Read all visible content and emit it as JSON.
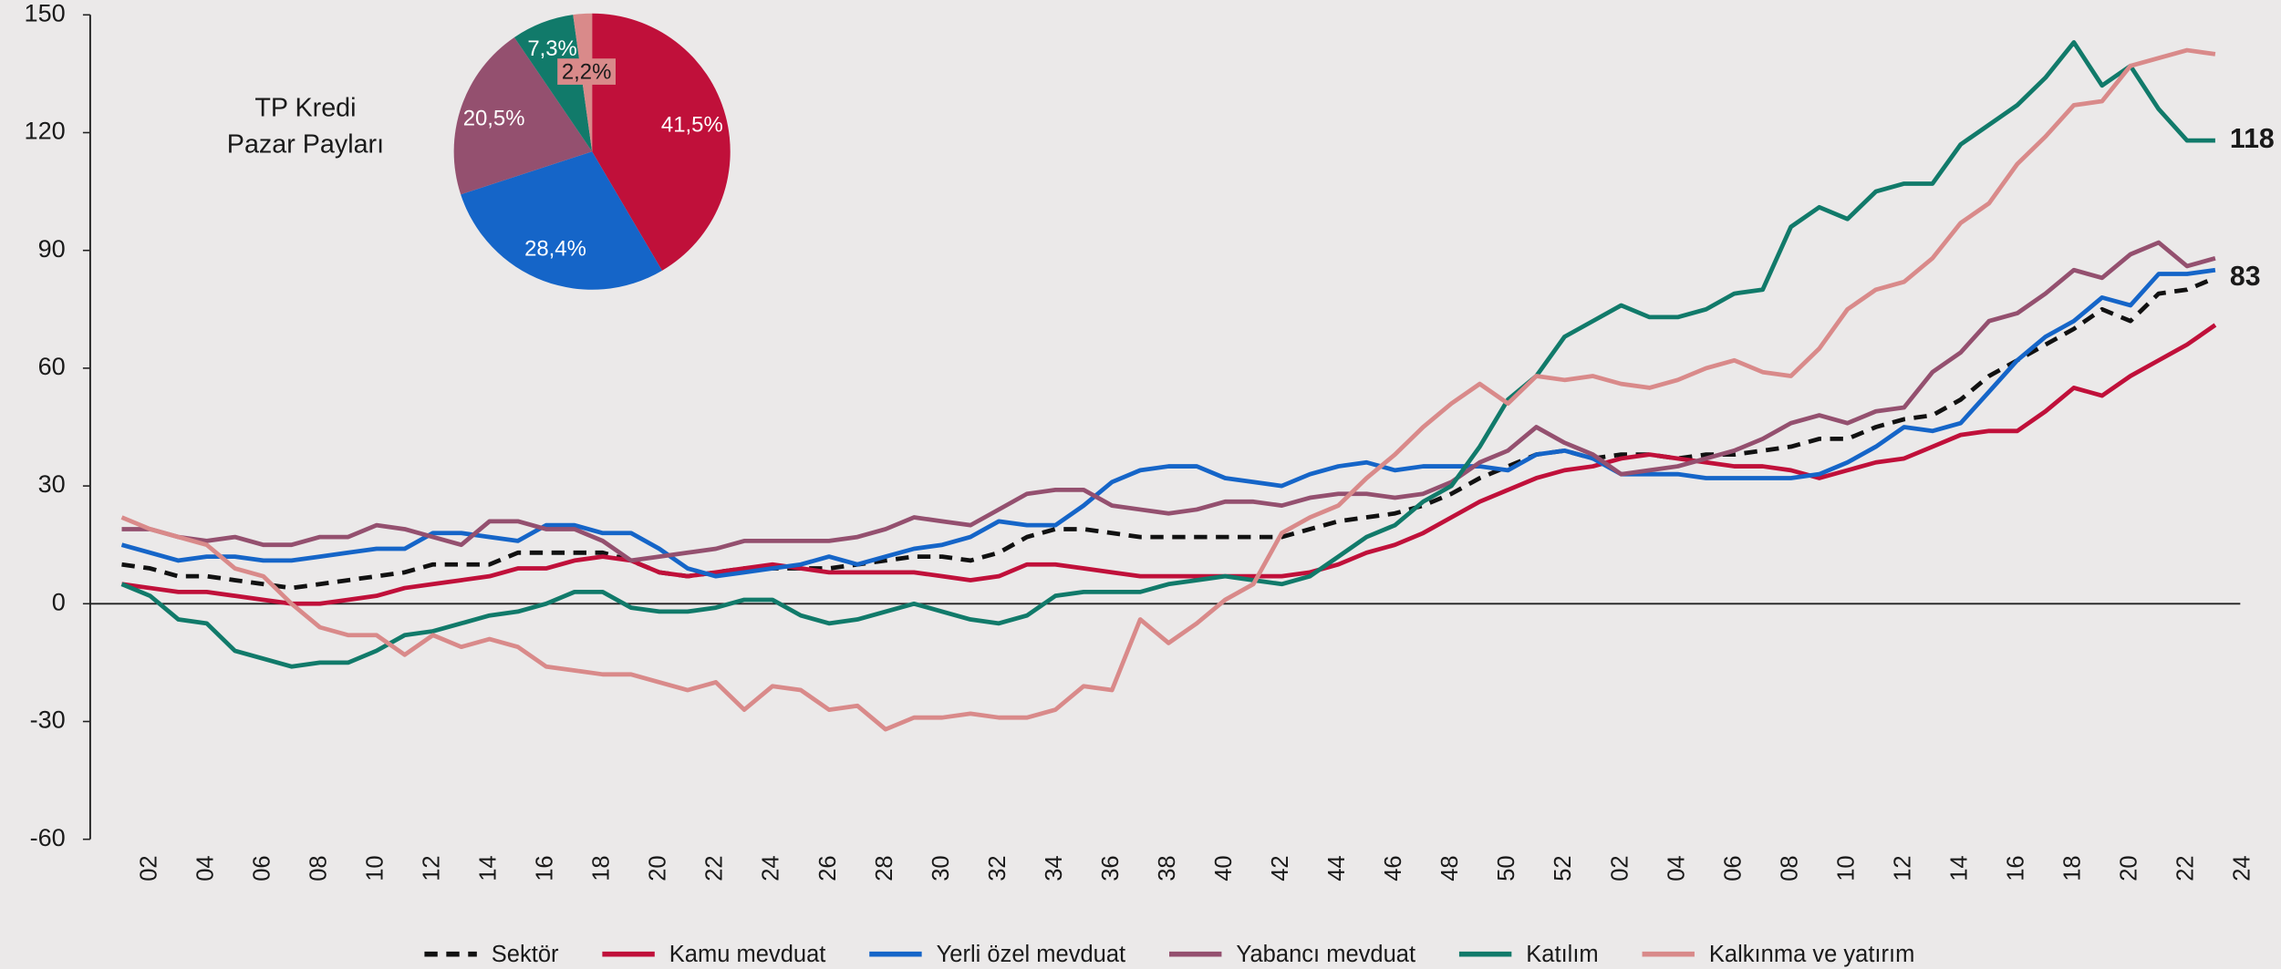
{
  "chart_data": [
    {
      "type": "line",
      "categories": [
        null,
        "02",
        null,
        "04",
        null,
        "06",
        null,
        "08",
        null,
        "10",
        null,
        "12",
        null,
        "14",
        null,
        "16",
        null,
        "18",
        null,
        "20",
        null,
        "22",
        null,
        "24",
        null,
        "26",
        null,
        "28",
        null,
        "30",
        null,
        "32",
        null,
        "34",
        null,
        "36",
        null,
        "38",
        null,
        "40",
        null,
        "42",
        null,
        "44",
        null,
        "46",
        null,
        "48",
        null,
        "50",
        null,
        "52",
        null,
        "02",
        null,
        "04",
        null,
        "06",
        null,
        "08",
        null,
        "10",
        null,
        "12",
        null,
        "14",
        null,
        "16",
        null,
        "18",
        null,
        "20",
        null,
        "22",
        null,
        "24"
      ],
      "ylim": [
        -60,
        150
      ],
      "yticks": [
        -60,
        -30,
        0,
        30,
        60,
        90,
        120,
        150
      ],
      "series": [
        {
          "name": "Sektör",
          "color": "#111111",
          "dashed": true,
          "end_label": "83",
          "values": [
            10,
            9,
            7,
            7,
            6,
            5,
            4,
            5,
            6,
            7,
            8,
            10,
            10,
            10,
            13,
            13,
            13,
            13,
            11,
            8,
            7,
            8,
            9,
            9,
            9,
            9,
            10,
            11,
            12,
            12,
            11,
            13,
            17,
            19,
            19,
            18,
            17,
            17,
            17,
            17,
            17,
            17,
            19,
            21,
            22,
            23,
            25,
            28,
            32,
            35,
            38,
            39,
            37,
            38,
            38,
            37,
            38,
            38,
            39,
            40,
            42,
            42,
            45,
            47,
            48,
            52,
            58,
            62,
            66,
            70,
            75,
            72,
            79,
            80,
            83,
            null
          ]
        },
        {
          "name": "Kamu mevduat",
          "color": "#c0103a",
          "values": [
            5,
            4,
            3,
            3,
            2,
            1,
            0,
            0,
            1,
            2,
            4,
            5,
            6,
            7,
            9,
            9,
            11,
            12,
            11,
            8,
            7,
            8,
            9,
            10,
            9,
            8,
            8,
            8,
            8,
            7,
            6,
            7,
            10,
            10,
            9,
            8,
            7,
            7,
            7,
            7,
            7,
            7,
            8,
            10,
            13,
            15,
            18,
            22,
            26,
            29,
            32,
            34,
            35,
            37,
            38,
            37,
            36,
            35,
            35,
            34,
            32,
            34,
            36,
            37,
            40,
            43,
            44,
            44,
            49,
            55,
            53,
            58,
            62,
            66,
            71,
            null
          ]
        },
        {
          "name": "Yerli özel mevduat",
          "color": "#1565c8",
          "values": [
            15,
            13,
            11,
            12,
            12,
            11,
            11,
            12,
            13,
            14,
            14,
            18,
            18,
            17,
            16,
            20,
            20,
            18,
            18,
            14,
            9,
            7,
            8,
            9,
            10,
            12,
            10,
            12,
            14,
            15,
            17,
            21,
            20,
            20,
            25,
            31,
            34,
            35,
            35,
            32,
            31,
            30,
            33,
            35,
            36,
            34,
            35,
            35,
            35,
            34,
            38,
            39,
            37,
            33,
            33,
            33,
            32,
            32,
            32,
            32,
            33,
            36,
            40,
            45,
            44,
            46,
            54,
            62,
            68,
            72,
            78,
            76,
            84,
            84,
            85,
            null
          ]
        },
        {
          "name": "Yabancı mevduat",
          "color": "#94506f",
          "values": [
            19,
            19,
            17,
            16,
            17,
            15,
            15,
            17,
            17,
            20,
            19,
            17,
            15,
            21,
            21,
            19,
            19,
            16,
            11,
            12,
            13,
            14,
            16,
            16,
            16,
            16,
            17,
            19,
            22,
            21,
            20,
            24,
            28,
            29,
            29,
            25,
            24,
            23,
            24,
            26,
            26,
            25,
            27,
            28,
            28,
            27,
            28,
            31,
            36,
            39,
            45,
            41,
            38,
            33,
            34,
            35,
            37,
            39,
            42,
            46,
            48,
            46,
            49,
            50,
            59,
            64,
            72,
            74,
            79,
            85,
            83,
            89,
            92,
            86,
            88,
            null
          ]
        },
        {
          "name": "Katılım",
          "color": "#117a6a",
          "end_label": "118",
          "values": [
            5,
            2,
            -4,
            -5,
            -12,
            -14,
            -16,
            -15,
            -15,
            -12,
            -8,
            -7,
            -5,
            -3,
            -2,
            0,
            3,
            3,
            -1,
            -2,
            -2,
            -1,
            1,
            1,
            -3,
            -5,
            -4,
            -2,
            0,
            -2,
            -4,
            -5,
            -3,
            2,
            3,
            3,
            3,
            5,
            6,
            7,
            6,
            5,
            7,
            12,
            17,
            20,
            26,
            30,
            40,
            52,
            58,
            68,
            72,
            76,
            73,
            73,
            75,
            79,
            80,
            96,
            101,
            98,
            105,
            107,
            107,
            117,
            122,
            127,
            134,
            143,
            132,
            137,
            126,
            118,
            118,
            null
          ]
        },
        {
          "name": "Kalkınma ve yatırım",
          "color": "#d98a8a",
          "values": [
            22,
            19,
            17,
            15,
            9,
            7,
            0,
            -6,
            -8,
            -8,
            -13,
            -8,
            -11,
            -9,
            -11,
            -16,
            -17,
            -18,
            -18,
            -20,
            -22,
            -20,
            -27,
            -21,
            -22,
            -27,
            -26,
            -32,
            -29,
            -29,
            -28,
            -29,
            -29,
            -27,
            -21,
            -22,
            -4,
            -10,
            -5,
            1,
            5,
            18,
            22,
            25,
            32,
            38,
            45,
            51,
            56,
            51,
            58,
            57,
            58,
            56,
            55,
            57,
            60,
            62,
            59,
            58,
            65,
            75,
            80,
            82,
            88,
            97,
            102,
            112,
            119,
            127,
            128,
            137,
            139,
            141,
            140,
            null
          ]
        }
      ]
    },
    {
      "type": "pie",
      "title": [
        "TP Kredi",
        "Pazar Payları"
      ],
      "values": [
        41.5,
        28.4,
        20.5,
        7.3,
        2.2
      ],
      "value_labels": [
        "41,5%",
        "28,4%",
        "20,5%",
        "7,3%",
        "2,2%"
      ],
      "colors": [
        "#c0103a",
        "#1565c8",
        "#94506f",
        "#117a6a",
        "#d98a8a"
      ]
    }
  ]
}
